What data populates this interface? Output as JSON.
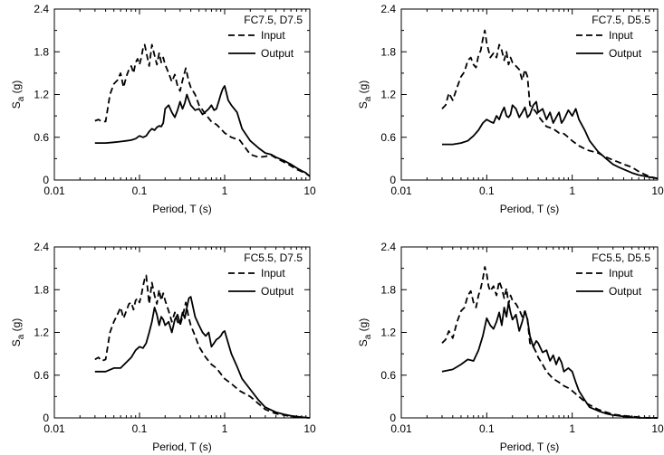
{
  "figure": {
    "background": "#ffffff",
    "line_color": "#000000"
  },
  "chart_data": [
    {
      "type": "line",
      "legend_title": "FC7.5, D7.5",
      "xlabel": "Period, T (s)",
      "ylabel": "Sa (g)",
      "ylabel_main": "S",
      "ylabel_sub": "a",
      "ylabel_unit": " (g)",
      "xscale": "log",
      "xlim": [
        0.01,
        10
      ],
      "ylim": [
        0,
        2.4
      ],
      "xticks": [
        0.01,
        0.1,
        1,
        10
      ],
      "xtick_labels": [
        "0.01",
        "0.1",
        "1",
        "10"
      ],
      "yticks": [
        0,
        0.6,
        1.2,
        1.8,
        2.4
      ],
      "ytick_labels": [
        "0",
        "0.6",
        "1.2",
        "1.8",
        "2.4"
      ],
      "legend_position": "top-right",
      "grid": false,
      "series": [
        {
          "name": "Input",
          "style": "dashed",
          "x": [
            0.03,
            0.033,
            0.036,
            0.04,
            0.045,
            0.05,
            0.055,
            0.06,
            0.065,
            0.07,
            0.075,
            0.08,
            0.085,
            0.09,
            0.095,
            0.1,
            0.105,
            0.11,
            0.115,
            0.12,
            0.13,
            0.14,
            0.15,
            0.16,
            0.17,
            0.18,
            0.19,
            0.2,
            0.22,
            0.24,
            0.26,
            0.28,
            0.3,
            0.32,
            0.35,
            0.38,
            0.4,
            0.45,
            0.5,
            0.6,
            0.7,
            0.8,
            0.9,
            1.0,
            1.2,
            1.5,
            2.0,
            2.5,
            3.0,
            3.5,
            4.0,
            5.0,
            6.0,
            7.0,
            8.0,
            10.0
          ],
          "y": [
            0.83,
            0.85,
            0.82,
            0.82,
            1.2,
            1.35,
            1.4,
            1.5,
            1.3,
            1.45,
            1.55,
            1.6,
            1.5,
            1.65,
            1.7,
            1.62,
            1.72,
            1.85,
            1.9,
            1.8,
            1.6,
            1.9,
            1.75,
            1.62,
            1.78,
            1.65,
            1.72,
            1.62,
            1.5,
            1.38,
            1.48,
            1.32,
            1.25,
            1.4,
            1.57,
            1.38,
            1.3,
            1.2,
            1.05,
            0.92,
            0.82,
            0.78,
            0.72,
            0.66,
            0.6,
            0.56,
            0.36,
            0.32,
            0.33,
            0.35,
            0.31,
            0.25,
            0.2,
            0.15,
            0.12,
            0.06
          ]
        },
        {
          "name": "Output",
          "style": "solid",
          "x": [
            0.03,
            0.04,
            0.05,
            0.06,
            0.07,
            0.08,
            0.09,
            0.1,
            0.11,
            0.12,
            0.13,
            0.14,
            0.15,
            0.16,
            0.17,
            0.18,
            0.19,
            0.2,
            0.22,
            0.24,
            0.26,
            0.28,
            0.3,
            0.32,
            0.34,
            0.36,
            0.38,
            0.4,
            0.45,
            0.5,
            0.55,
            0.6,
            0.65,
            0.7,
            0.75,
            0.8,
            0.85,
            0.9,
            0.95,
            1.0,
            1.05,
            1.1,
            1.2,
            1.4,
            1.6,
            2.0,
            2.5,
            3.0,
            3.5,
            4.0,
            5.0,
            6.0,
            7.0,
            8.0,
            9.0,
            10.0
          ],
          "y": [
            0.52,
            0.52,
            0.53,
            0.54,
            0.55,
            0.56,
            0.58,
            0.62,
            0.6,
            0.62,
            0.68,
            0.72,
            0.7,
            0.74,
            0.76,
            0.75,
            0.8,
            1.0,
            1.05,
            0.95,
            0.88,
            0.98,
            1.1,
            1.0,
            1.08,
            1.2,
            1.12,
            1.05,
            0.98,
            1.0,
            0.92,
            0.96,
            1.0,
            1.05,
            0.98,
            1.0,
            1.1,
            1.2,
            1.28,
            1.32,
            1.22,
            1.12,
            1.05,
            0.95,
            0.72,
            0.55,
            0.45,
            0.38,
            0.36,
            0.32,
            0.27,
            0.22,
            0.17,
            0.13,
            0.1,
            0.05
          ]
        }
      ]
    },
    {
      "type": "line",
      "legend_title": "FC7.5, D5.5",
      "xlabel": "Period, T (s)",
      "ylabel": "Sa (g)",
      "ylabel_main": "S",
      "ylabel_sub": "a",
      "ylabel_unit": " (g)",
      "xscale": "log",
      "xlim": [
        0.01,
        10
      ],
      "ylim": [
        0,
        2.4
      ],
      "xticks": [
        0.01,
        0.1,
        1,
        10
      ],
      "xtick_labels": [
        "0.01",
        "0.1",
        "1",
        "10"
      ],
      "yticks": [
        0,
        0.6,
        1.2,
        1.8,
        2.4
      ],
      "ytick_labels": [
        "0",
        "0.6",
        "1.2",
        "1.8",
        "2.4"
      ],
      "legend_position": "top-right",
      "grid": false,
      "series": [
        {
          "name": "Input",
          "style": "dashed",
          "x": [
            0.03,
            0.033,
            0.036,
            0.04,
            0.045,
            0.05,
            0.055,
            0.06,
            0.065,
            0.07,
            0.075,
            0.08,
            0.085,
            0.09,
            0.095,
            0.1,
            0.105,
            0.11,
            0.12,
            0.13,
            0.14,
            0.15,
            0.16,
            0.17,
            0.18,
            0.19,
            0.2,
            0.22,
            0.24,
            0.26,
            0.28,
            0.3,
            0.32,
            0.35,
            0.38,
            0.4,
            0.45,
            0.5,
            0.6,
            0.7,
            0.8,
            0.9,
            1.0,
            1.2,
            1.5,
            2.0,
            2.5,
            3.0,
            3.5,
            4.0,
            5.0,
            6.0,
            7.0,
            8.0,
            10.0
          ],
          "y": [
            1.0,
            1.05,
            1.22,
            1.12,
            1.3,
            1.45,
            1.52,
            1.68,
            1.72,
            1.62,
            1.58,
            1.75,
            1.82,
            1.98,
            2.1,
            1.92,
            1.82,
            1.72,
            1.78,
            1.72,
            1.9,
            1.82,
            1.68,
            1.8,
            1.62,
            1.72,
            1.65,
            1.6,
            1.55,
            1.4,
            1.55,
            1.45,
            1.05,
            1.0,
            0.95,
            0.9,
            0.82,
            0.75,
            0.72,
            0.66,
            0.65,
            0.6,
            0.55,
            0.48,
            0.42,
            0.38,
            0.32,
            0.28,
            0.25,
            0.22,
            0.18,
            0.12,
            0.08,
            0.05,
            0.02
          ]
        },
        {
          "name": "Output",
          "style": "solid",
          "x": [
            0.03,
            0.04,
            0.05,
            0.06,
            0.07,
            0.08,
            0.09,
            0.1,
            0.11,
            0.12,
            0.13,
            0.14,
            0.15,
            0.16,
            0.17,
            0.18,
            0.19,
            0.2,
            0.22,
            0.24,
            0.26,
            0.28,
            0.3,
            0.32,
            0.35,
            0.38,
            0.4,
            0.45,
            0.5,
            0.55,
            0.6,
            0.65,
            0.7,
            0.75,
            0.8,
            0.9,
            1.0,
            1.1,
            1.2,
            1.4,
            1.6,
            2.0,
            2.5,
            3.0,
            3.5,
            4.0,
            5.0,
            6.0,
            8.0,
            10.0
          ],
          "y": [
            0.5,
            0.5,
            0.52,
            0.55,
            0.62,
            0.7,
            0.8,
            0.85,
            0.82,
            0.8,
            0.9,
            0.85,
            0.95,
            1.02,
            0.9,
            0.88,
            0.92,
            1.05,
            1.0,
            0.88,
            0.95,
            1.02,
            0.88,
            0.92,
            1.05,
            1.1,
            0.95,
            1.0,
            0.85,
            0.95,
            0.8,
            0.88,
            0.95,
            0.8,
            0.85,
            0.98,
            0.9,
            1.0,
            0.85,
            0.7,
            0.55,
            0.4,
            0.3,
            0.22,
            0.18,
            0.15,
            0.1,
            0.07,
            0.04,
            0.02
          ]
        }
      ]
    },
    {
      "type": "line",
      "legend_title": "FC5.5, D7.5",
      "xlabel": "Period, T (s)",
      "ylabel": "Sa (g)",
      "ylabel_main": "S",
      "ylabel_sub": "a",
      "ylabel_unit": " (g)",
      "xscale": "log",
      "xlim": [
        0.01,
        10
      ],
      "ylim": [
        0,
        2.4
      ],
      "xticks": [
        0.01,
        0.1,
        1,
        10
      ],
      "xtick_labels": [
        "0.01",
        "0.1",
        "1",
        "10"
      ],
      "yticks": [
        0,
        0.6,
        1.2,
        1.8,
        2.4
      ],
      "ytick_labels": [
        "0",
        "0.6",
        "1.2",
        "1.8",
        "2.4"
      ],
      "legend_position": "top-right",
      "grid": false,
      "series": [
        {
          "name": "Input",
          "style": "dashed",
          "x": [
            0.03,
            0.033,
            0.036,
            0.04,
            0.045,
            0.05,
            0.055,
            0.06,
            0.065,
            0.07,
            0.075,
            0.08,
            0.085,
            0.09,
            0.095,
            0.1,
            0.105,
            0.11,
            0.115,
            0.12,
            0.13,
            0.14,
            0.15,
            0.16,
            0.17,
            0.18,
            0.19,
            0.2,
            0.22,
            0.24,
            0.26,
            0.28,
            0.3,
            0.32,
            0.35,
            0.38,
            0.4,
            0.45,
            0.5,
            0.6,
            0.7,
            0.8,
            0.9,
            1.0,
            1.2,
            1.5,
            2.0,
            2.5,
            3.0,
            4.0,
            5.0,
            6.0,
            8.0,
            10.0
          ],
          "y": [
            0.82,
            0.85,
            0.8,
            0.82,
            1.2,
            1.35,
            1.45,
            1.55,
            1.4,
            1.5,
            1.6,
            1.62,
            1.52,
            1.65,
            1.68,
            1.62,
            1.72,
            1.85,
            1.95,
            2.0,
            1.6,
            1.9,
            1.72,
            1.6,
            1.8,
            1.65,
            1.75,
            1.65,
            1.5,
            1.35,
            1.48,
            1.35,
            1.3,
            1.42,
            1.62,
            1.4,
            1.3,
            1.15,
            1.0,
            0.85,
            0.75,
            0.7,
            0.62,
            0.55,
            0.48,
            0.38,
            0.3,
            0.2,
            0.12,
            0.06,
            0.04,
            0.02,
            0.01,
            0.0
          ]
        },
        {
          "name": "Output",
          "style": "solid",
          "x": [
            0.03,
            0.04,
            0.05,
            0.06,
            0.07,
            0.08,
            0.09,
            0.1,
            0.11,
            0.12,
            0.13,
            0.14,
            0.15,
            0.16,
            0.17,
            0.18,
            0.19,
            0.2,
            0.22,
            0.24,
            0.26,
            0.28,
            0.3,
            0.32,
            0.34,
            0.36,
            0.38,
            0.4,
            0.45,
            0.5,
            0.55,
            0.6,
            0.65,
            0.7,
            0.75,
            0.8,
            0.85,
            0.9,
            0.95,
            1.0,
            1.1,
            1.2,
            1.4,
            1.6,
            2.0,
            2.5,
            3.0,
            4.0,
            5.0,
            6.0,
            8.0,
            10.0
          ],
          "y": [
            0.65,
            0.65,
            0.7,
            0.7,
            0.78,
            0.85,
            0.95,
            1.0,
            0.98,
            1.05,
            1.2,
            1.35,
            1.55,
            1.45,
            1.3,
            1.42,
            1.38,
            1.3,
            1.35,
            1.2,
            1.38,
            1.45,
            1.32,
            1.48,
            1.4,
            1.55,
            1.68,
            1.7,
            1.42,
            1.3,
            1.2,
            1.15,
            1.2,
            1.0,
            1.05,
            1.1,
            1.12,
            1.15,
            1.2,
            1.22,
            1.05,
            0.9,
            0.72,
            0.55,
            0.4,
            0.25,
            0.15,
            0.08,
            0.05,
            0.03,
            0.01,
            0.0
          ]
        }
      ]
    },
    {
      "type": "line",
      "legend_title": "FC5.5, D5.5",
      "xlabel": "Period, T (s)",
      "ylabel": "Sa (g)",
      "ylabel_main": "S",
      "ylabel_sub": "a",
      "ylabel_unit": " (g)",
      "xscale": "log",
      "xlim": [
        0.01,
        10
      ],
      "ylim": [
        0,
        2.4
      ],
      "xticks": [
        0.01,
        0.1,
        1,
        10
      ],
      "xtick_labels": [
        "0.01",
        "0.1",
        "1",
        "10"
      ],
      "yticks": [
        0,
        0.6,
        1.2,
        1.8,
        2.4
      ],
      "ytick_labels": [
        "0",
        "0.6",
        "1.2",
        "1.8",
        "2.4"
      ],
      "legend_position": "top-right",
      "grid": false,
      "series": [
        {
          "name": "Input",
          "style": "dashed",
          "x": [
            0.03,
            0.033,
            0.036,
            0.04,
            0.045,
            0.05,
            0.055,
            0.06,
            0.065,
            0.07,
            0.075,
            0.08,
            0.085,
            0.09,
            0.095,
            0.1,
            0.105,
            0.11,
            0.12,
            0.13,
            0.14,
            0.15,
            0.16,
            0.17,
            0.18,
            0.19,
            0.2,
            0.22,
            0.24,
            0.26,
            0.28,
            0.3,
            0.32,
            0.35,
            0.38,
            0.4,
            0.45,
            0.5,
            0.6,
            0.7,
            0.8,
            0.9,
            1.0,
            1.2,
            1.5,
            2.0,
            2.5,
            3.0,
            4.0,
            5.0,
            6.0,
            8.0,
            10.0
          ],
          "y": [
            1.05,
            1.1,
            1.22,
            1.12,
            1.35,
            1.5,
            1.55,
            1.72,
            1.78,
            1.62,
            1.55,
            1.72,
            1.82,
            1.95,
            2.12,
            2.02,
            1.85,
            1.78,
            1.85,
            1.72,
            1.92,
            1.82,
            1.68,
            1.82,
            1.6,
            1.72,
            1.65,
            1.6,
            1.52,
            1.42,
            1.5,
            1.38,
            1.05,
            1.0,
            0.92,
            0.85,
            0.75,
            0.65,
            0.55,
            0.5,
            0.45,
            0.42,
            0.38,
            0.3,
            0.2,
            0.12,
            0.08,
            0.05,
            0.03,
            0.02,
            0.01,
            0.0,
            0.0
          ]
        },
        {
          "name": "Output",
          "style": "solid",
          "x": [
            0.03,
            0.04,
            0.05,
            0.06,
            0.07,
            0.08,
            0.09,
            0.1,
            0.11,
            0.12,
            0.13,
            0.14,
            0.15,
            0.16,
            0.17,
            0.18,
            0.19,
            0.2,
            0.22,
            0.24,
            0.26,
            0.28,
            0.3,
            0.32,
            0.35,
            0.38,
            0.4,
            0.45,
            0.5,
            0.55,
            0.6,
            0.65,
            0.7,
            0.75,
            0.8,
            0.9,
            1.0,
            1.1,
            1.2,
            1.4,
            1.6,
            2.0,
            2.5,
            3.0,
            4.0,
            5.0,
            6.0,
            8.0,
            10.0
          ],
          "y": [
            0.65,
            0.68,
            0.75,
            0.82,
            0.8,
            0.95,
            1.15,
            1.4,
            1.3,
            1.25,
            1.35,
            1.48,
            1.3,
            1.55,
            1.42,
            1.62,
            1.48,
            1.38,
            1.45,
            1.22,
            1.35,
            1.5,
            1.38,
            1.15,
            1.0,
            1.08,
            1.05,
            0.92,
            0.95,
            0.8,
            0.88,
            0.75,
            0.85,
            0.78,
            0.65,
            0.7,
            0.65,
            0.5,
            0.38,
            0.25,
            0.15,
            0.1,
            0.06,
            0.04,
            0.02,
            0.01,
            0.0,
            0.0,
            0.0
          ]
        }
      ]
    }
  ]
}
